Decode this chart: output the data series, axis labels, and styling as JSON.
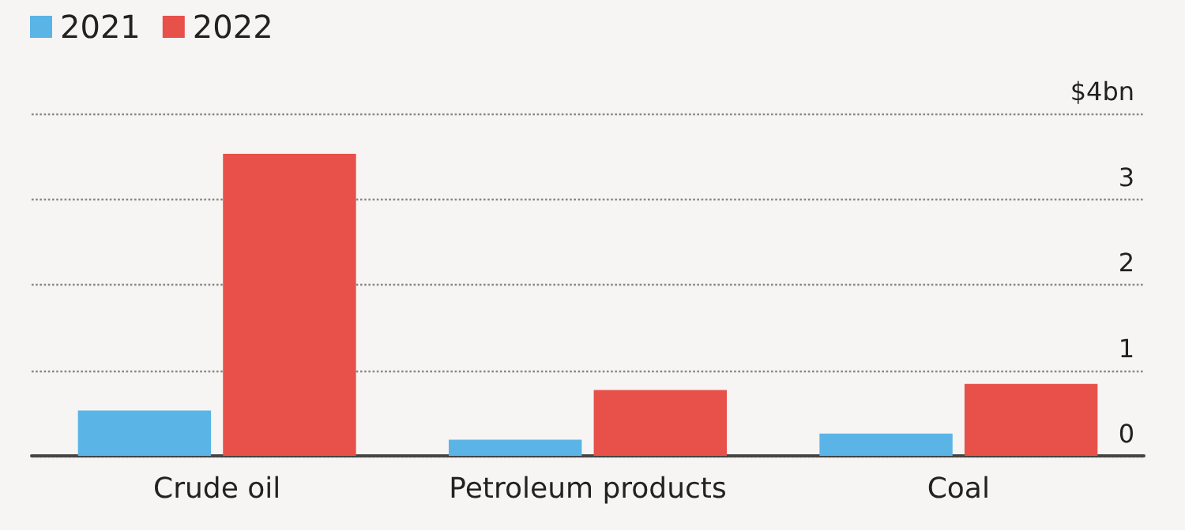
{
  "chart_data": {
    "type": "bar",
    "categories": [
      "Crude oil",
      "Petroleum products",
      "Coal"
    ],
    "series": [
      {
        "name": "2021",
        "color": "#5bb4e6",
        "values": [
          0.53,
          0.19,
          0.26
        ]
      },
      {
        "name": "2022",
        "color": "#e8504a",
        "values": [
          3.53,
          0.77,
          0.84
        ]
      }
    ],
    "ylim": [
      0,
      4
    ],
    "yticks": [
      0,
      1,
      2,
      3,
      {
        "value": 4,
        "label": "$4bn"
      }
    ],
    "grid": "y",
    "legend": "top left"
  }
}
